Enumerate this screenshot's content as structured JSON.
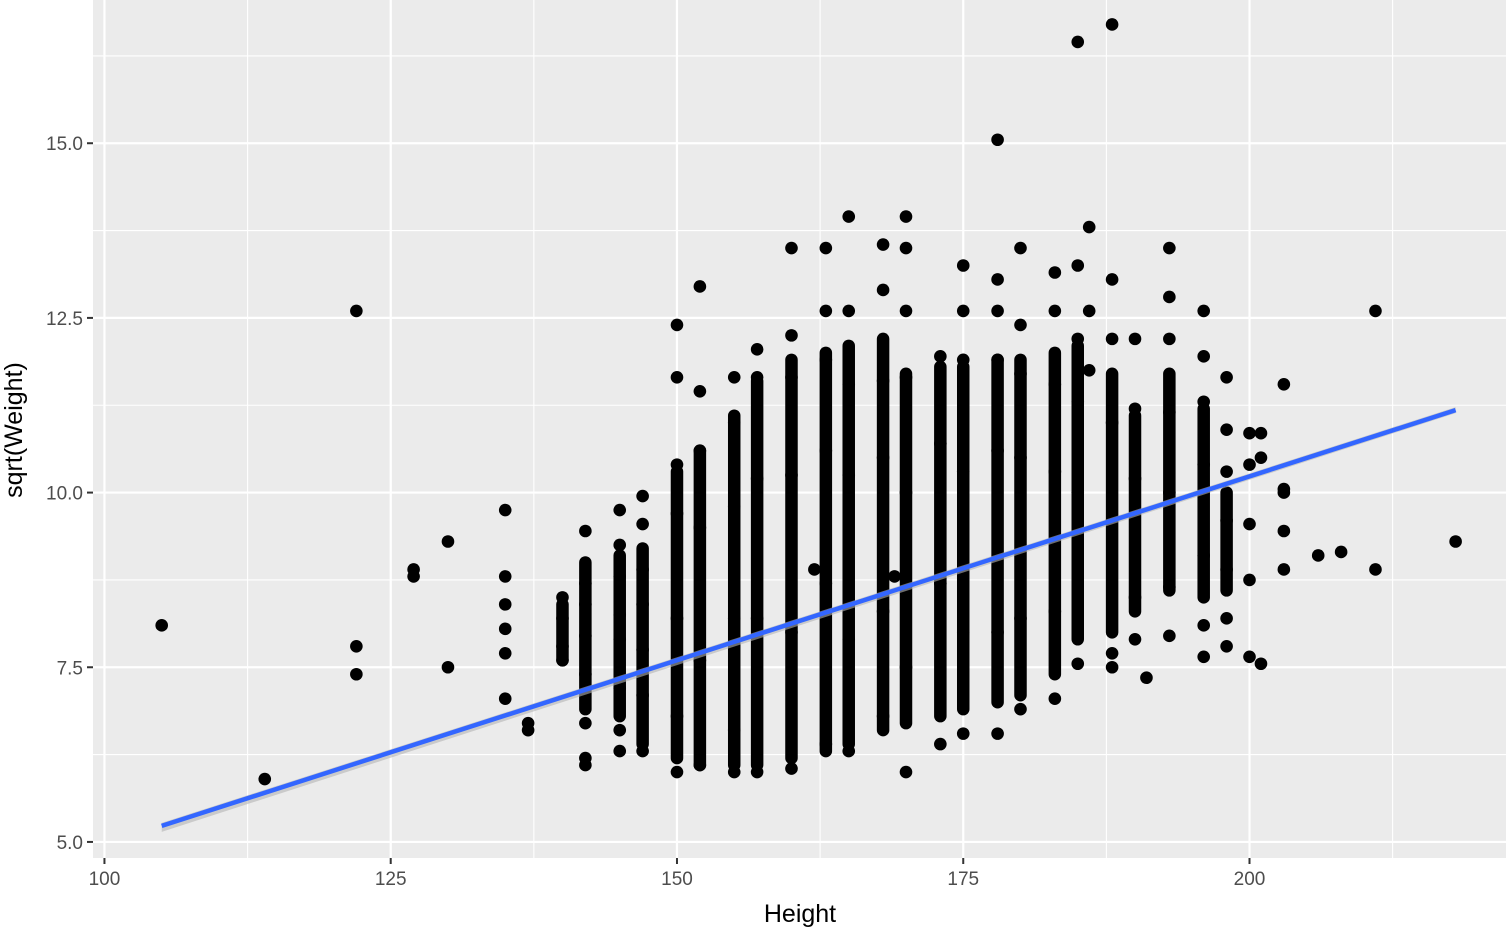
{
  "chart_data": {
    "type": "scatter",
    "title": "",
    "xlabel": "Height",
    "ylabel": "sqrt(Weight)",
    "xlim": [
      99,
      222.4
    ],
    "ylim": [
      4.77,
      17.05
    ],
    "x_ticks": [
      100,
      125,
      150,
      175,
      200
    ],
    "x_tick_labels": [
      "100",
      "125",
      "150",
      "175",
      "200"
    ],
    "y_ticks": [
      5.0,
      7.5,
      10.0,
      12.5,
      15.0
    ],
    "y_tick_labels": [
      "5.0",
      "7.5",
      "10.0",
      "12.5",
      "15.0"
    ],
    "grid": true,
    "legend": "none",
    "colors": {
      "panel_background": "#ebebeb",
      "grid": "#ffffff",
      "points": "#000000",
      "fit_line": "#3366ff",
      "confidence_band": "#b4b4b4"
    },
    "series": [
      {
        "kind": "points",
        "points": [
          [
            105,
            8.1
          ],
          [
            114,
            5.9
          ],
          [
            122,
            12.6
          ],
          [
            122,
            7.8
          ],
          [
            122,
            7.4
          ],
          [
            127,
            8.9
          ],
          [
            127,
            8.8
          ],
          [
            130,
            9.3
          ],
          [
            130,
            7.5
          ],
          [
            135,
            9.75
          ],
          [
            135,
            8.8
          ],
          [
            135,
            8.4
          ],
          [
            135,
            8.05
          ],
          [
            135,
            7.7
          ],
          [
            135,
            7.05
          ],
          [
            137,
            6.7
          ],
          [
            137,
            6.6
          ],
          [
            140,
            8.5
          ],
          [
            140,
            8.2
          ],
          [
            140,
            7.8
          ],
          [
            140,
            7.6
          ],
          [
            142,
            9.45
          ],
          [
            142,
            8.7
          ],
          [
            142,
            8.4
          ],
          [
            142,
            7.95
          ],
          [
            142,
            7.4
          ],
          [
            142,
            6.7
          ],
          [
            142,
            6.2
          ],
          [
            142,
            6.1
          ],
          [
            145,
            9.75
          ],
          [
            145,
            9.25
          ],
          [
            145,
            8.8
          ],
          [
            145,
            8.25
          ],
          [
            145,
            7.9
          ],
          [
            145,
            7.2
          ],
          [
            145,
            6.6
          ],
          [
            145,
            6.3
          ],
          [
            147,
            9.95
          ],
          [
            147,
            9.55
          ],
          [
            147,
            8.9
          ],
          [
            147,
            8.4
          ],
          [
            147,
            7.75
          ],
          [
            147,
            7.1
          ],
          [
            147,
            6.3
          ],
          [
            150,
            12.4
          ],
          [
            150,
            11.65
          ],
          [
            150,
            10.4
          ],
          [
            150,
            9.7
          ],
          [
            150,
            8.2
          ],
          [
            150,
            6.8
          ],
          [
            150,
            6.0
          ],
          [
            152,
            12.95
          ],
          [
            152,
            11.45
          ],
          [
            152,
            10.6
          ],
          [
            152,
            9.5
          ],
          [
            152,
            7.6
          ],
          [
            152,
            6.1
          ],
          [
            155,
            11.65
          ],
          [
            155,
            11.0
          ],
          [
            155,
            9.8
          ],
          [
            155,
            8.2
          ],
          [
            155,
            6.6
          ],
          [
            155,
            6.0
          ],
          [
            157,
            12.05
          ],
          [
            157,
            11.65
          ],
          [
            157,
            10.2
          ],
          [
            157,
            8.2
          ],
          [
            157,
            6.0
          ],
          [
            160,
            13.5
          ],
          [
            160,
            12.25
          ],
          [
            160,
            11.65
          ],
          [
            160,
            10.25
          ],
          [
            160,
            8.0
          ],
          [
            160,
            6.05
          ],
          [
            162,
            8.9
          ],
          [
            163,
            13.5
          ],
          [
            163,
            12.6
          ],
          [
            163,
            11.9
          ],
          [
            163,
            10.6
          ],
          [
            163,
            8.7
          ],
          [
            163,
            6.4
          ],
          [
            165,
            13.95
          ],
          [
            165,
            12.6
          ],
          [
            165,
            11.55
          ],
          [
            165,
            10.25
          ],
          [
            165,
            7.9
          ],
          [
            165,
            6.3
          ],
          [
            168,
            13.55
          ],
          [
            168,
            12.9
          ],
          [
            168,
            11.6
          ],
          [
            168,
            10.5
          ],
          [
            168,
            8.3
          ],
          [
            168,
            6.8
          ],
          [
            169,
            8.8
          ],
          [
            170,
            13.95
          ],
          [
            170,
            13.5
          ],
          [
            170,
            12.6
          ],
          [
            170,
            11.65
          ],
          [
            170,
            10.0
          ],
          [
            170,
            7.5
          ],
          [
            170,
            6.0
          ],
          [
            173,
            11.95
          ],
          [
            173,
            10.7
          ],
          [
            173,
            8.7
          ],
          [
            173,
            6.4
          ],
          [
            175,
            13.25
          ],
          [
            175,
            12.6
          ],
          [
            175,
            11.9
          ],
          [
            175,
            10.3
          ],
          [
            175,
            8.0
          ],
          [
            175,
            6.55
          ],
          [
            178,
            15.05
          ],
          [
            178,
            13.05
          ],
          [
            178,
            12.6
          ],
          [
            178,
            11.9
          ],
          [
            178,
            10.6
          ],
          [
            178,
            8.0
          ],
          [
            178,
            6.55
          ],
          [
            180,
            13.5
          ],
          [
            180,
            12.4
          ],
          [
            180,
            11.7
          ],
          [
            180,
            10.5
          ],
          [
            180,
            8.2
          ],
          [
            180,
            6.9
          ],
          [
            183,
            13.15
          ],
          [
            183,
            12.6
          ],
          [
            183,
            11.55
          ],
          [
            183,
            10.3
          ],
          [
            183,
            8.3
          ],
          [
            183,
            7.05
          ],
          [
            185,
            16.45
          ],
          [
            185,
            13.25
          ],
          [
            185,
            12.2
          ],
          [
            185,
            11.3
          ],
          [
            185,
            10.0
          ],
          [
            185,
            7.55
          ],
          [
            186,
            13.8
          ],
          [
            186,
            12.6
          ],
          [
            186,
            11.75
          ],
          [
            188,
            16.7
          ],
          [
            188,
            13.05
          ],
          [
            188,
            12.2
          ],
          [
            188,
            11.0
          ],
          [
            188,
            9.6
          ],
          [
            188,
            7.7
          ],
          [
            188,
            7.5
          ],
          [
            190,
            12.2
          ],
          [
            190,
            11.2
          ],
          [
            190,
            10.2
          ],
          [
            190,
            8.5
          ],
          [
            190,
            7.9
          ],
          [
            191,
            7.35
          ],
          [
            193,
            13.5
          ],
          [
            193,
            12.8
          ],
          [
            193,
            12.2
          ],
          [
            193,
            11.15
          ],
          [
            193,
            10.0
          ],
          [
            193,
            8.65
          ],
          [
            193,
            7.95
          ],
          [
            196,
            12.6
          ],
          [
            196,
            11.95
          ],
          [
            196,
            11.3
          ],
          [
            196,
            10.4
          ],
          [
            196,
            9.1
          ],
          [
            196,
            8.1
          ],
          [
            196,
            7.65
          ],
          [
            198,
            11.65
          ],
          [
            198,
            10.9
          ],
          [
            198,
            10.3
          ],
          [
            198,
            9.6
          ],
          [
            198,
            8.9
          ],
          [
            198,
            8.2
          ],
          [
            198,
            7.8
          ],
          [
            200,
            10.85
          ],
          [
            200,
            10.4
          ],
          [
            200,
            9.55
          ],
          [
            200,
            8.75
          ],
          [
            200,
            7.65
          ],
          [
            201,
            10.85
          ],
          [
            201,
            10.5
          ],
          [
            201,
            7.55
          ],
          [
            203,
            11.55
          ],
          [
            203,
            10.05
          ],
          [
            203,
            10.0
          ],
          [
            203,
            9.45
          ],
          [
            203,
            8.9
          ],
          [
            206,
            9.1
          ],
          [
            208,
            9.15
          ],
          [
            211,
            12.6
          ],
          [
            211,
            8.9
          ],
          [
            218,
            9.3
          ]
        ]
      },
      {
        "kind": "columns",
        "columns": [
          [
            140,
            7.6,
            8.4
          ],
          [
            142,
            6.9,
            9.0
          ],
          [
            145,
            6.8,
            9.1
          ],
          [
            147,
            6.4,
            9.2
          ],
          [
            150,
            6.2,
            10.3
          ],
          [
            152,
            6.1,
            10.6
          ],
          [
            155,
            6.1,
            11.1
          ],
          [
            157,
            6.1,
            11.6
          ],
          [
            160,
            6.2,
            11.9
          ],
          [
            163,
            6.3,
            12.0
          ],
          [
            165,
            6.4,
            12.1
          ],
          [
            168,
            6.6,
            12.2
          ],
          [
            170,
            6.7,
            11.7
          ],
          [
            173,
            6.8,
            11.8
          ],
          [
            175,
            6.9,
            11.8
          ],
          [
            178,
            7.0,
            11.9
          ],
          [
            180,
            7.1,
            11.9
          ],
          [
            183,
            7.4,
            12.0
          ],
          [
            185,
            7.9,
            12.1
          ],
          [
            188,
            8.0,
            11.7
          ],
          [
            190,
            8.3,
            11.1
          ],
          [
            193,
            8.6,
            11.7
          ],
          [
            196,
            8.5,
            11.2
          ],
          [
            198,
            8.6,
            10.0
          ]
        ]
      },
      {
        "kind": "fit",
        "method": "linear",
        "x": [
          105,
          218
        ],
        "y": [
          5.23,
          11.18
        ]
      }
    ]
  }
}
